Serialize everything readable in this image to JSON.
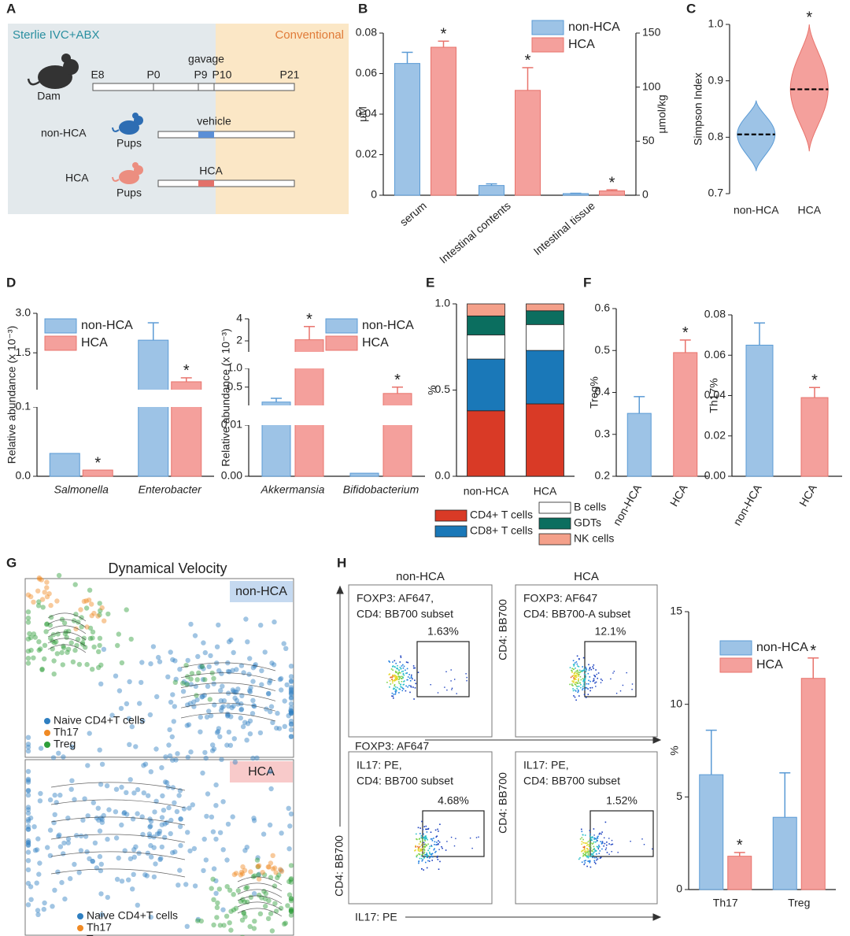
{
  "panel_labels": [
    "A",
    "B",
    "C",
    "D",
    "E",
    "F",
    "G",
    "H"
  ],
  "diagram": {
    "left_phase": "Sterlie IVC+ABX",
    "right_phase": "Conventional",
    "dam": "Dam",
    "timeline": [
      "E8",
      "P0",
      "P9",
      "P10",
      "P21"
    ],
    "gavage": "gavage",
    "groups": [
      {
        "name": "non-HCA",
        "pups": "Pups",
        "treatment": "vehicle"
      },
      {
        "name": "HCA",
        "pups": "Pups",
        "treatment": "HCA"
      }
    ]
  },
  "chart_data": [
    {
      "type": "bar",
      "ylabel": "µM",
      "y2label": "µmol/kg",
      "categories": [
        "serum",
        "Intestinal contents",
        "Intestinal tissue"
      ],
      "category_axes": [
        "y",
        "y2",
        "y2"
      ],
      "ylim": [
        0,
        0.08
      ],
      "yticks": [
        0,
        0.02,
        0.04,
        0.06,
        0.08
      ],
      "y2lim": [
        0,
        150
      ],
      "y2ticks": [
        0,
        50,
        100,
        150
      ],
      "legend": "upper right",
      "series": [
        {
          "name": "non-HCA",
          "color": "#9dc3e6",
          "edgecolor": "#5b9bd5",
          "values": [
            0.065,
            9,
            1.5
          ],
          "errors": [
            0.0055,
            1.5,
            0.3
          ]
        },
        {
          "name": "HCA",
          "color": "#f4a09c",
          "edgecolor": "#e8736c",
          "values": [
            0.073,
            97,
            4
          ],
          "errors": [
            0.003,
            21,
            1
          ],
          "sig": [
            "*",
            "*",
            "*"
          ]
        }
      ]
    },
    {
      "type": "violin",
      "ylabel": "Simpson Index",
      "categories": [
        "non-HCA",
        "HCA"
      ],
      "ylim": [
        0.7,
        1
      ],
      "yticks": [
        0.7,
        0.8,
        0.9,
        {
          "value": 1,
          "label": "1.0"
        }
      ],
      "medians": [
        0.805,
        0.885
      ],
      "mins": [
        0.74,
        0.775
      ],
      "maxs": [
        0.865,
        1.0
      ],
      "colors": [
        "#9dc3e6",
        "#f4a09c"
      ],
      "edgecolors": [
        "#5b9bd5",
        "#e8736c"
      ],
      "sig": [
        null,
        "*"
      ]
    },
    {
      "type": "bar",
      "ylabel": "Relative abundance (x 10⁻³)",
      "categories": [
        "Salmonella",
        "Enterobacter"
      ],
      "category_style": "italic",
      "legend": "upper left",
      "y_segments": [
        {
          "ylim": [
            0,
            0.1
          ],
          "yticks": [
            {
              "value": 0,
              "label": "0.0"
            },
            0.1
          ]
        },
        {
          "ylim": [
            0.1,
            3
          ],
          "yticks": [
            1.5,
            {
              "value": 3,
              "label": "3.0"
            }
          ]
        }
      ],
      "series": [
        {
          "name": "non-HCA",
          "color": "#9dc3e6",
          "edgecolor": "#5b9bd5",
          "values": [
            0.033,
            1.98
          ],
          "errors": [
            null,
            0.66
          ]
        },
        {
          "name": "HCA",
          "color": "#f4a09c",
          "edgecolor": "#e8736c",
          "values": [
            0.009,
            0.4
          ],
          "errors": [
            null,
            0.15
          ],
          "sig": [
            "*",
            "*"
          ]
        }
      ]
    },
    {
      "type": "bar",
      "ylabel": "Relative abundance (x 10⁻³)",
      "categories": [
        "Akkermansia",
        "Bifidobacterium"
      ],
      "category_style": "italic",
      "legend": "upper right",
      "y_segments": [
        {
          "ylim": [
            0,
            0.01
          ],
          "yticks": [
            {
              "value": 0,
              "label": "0.00"
            },
            0.01
          ]
        },
        {
          "ylim": [
            0.01,
            1
          ],
          "yticks": [
            0.5,
            {
              "value": 1,
              "label": "1.0"
            }
          ]
        },
        {
          "ylim": [
            1,
            4
          ],
          "yticks": [
            2,
            4
          ]
        }
      ],
      "series": [
        {
          "name": "non-HCA",
          "color": "#9dc3e6",
          "edgecolor": "#5b9bd5",
          "values": [
            0.1,
            0.0006
          ],
          "errors": [
            0.1,
            null
          ]
        },
        {
          "name": "HCA",
          "color": "#f4a09c",
          "edgecolor": "#e8736c",
          "values": [
            2.1,
            0.33
          ],
          "errors": [
            1.2,
            0.17
          ],
          "sig": [
            "*",
            "*"
          ]
        }
      ]
    },
    {
      "type": "stacked_bar",
      "ylabel": "%",
      "categories": [
        "non-HCA",
        "HCA"
      ],
      "ylim": [
        0,
        1
      ],
      "yticks": [
        {
          "value": 0,
          "label": "0.0"
        },
        0.5,
        {
          "value": 1,
          "label": "1.0"
        }
      ],
      "series": [
        {
          "name": "CD4+ T cells",
          "color": "#d93a26",
          "values": [
            0.38,
            0.42
          ]
        },
        {
          "name": "CD8+ T cells",
          "color": "#1a78b8",
          "values": [
            0.3,
            0.31
          ]
        },
        {
          "name": "B cells",
          "color": "#ffffff",
          "values": [
            0.14,
            0.15
          ]
        },
        {
          "name": "GDTs",
          "color": "#0b6e5f",
          "values": [
            0.11,
            0.08
          ]
        },
        {
          "name": "NK cells",
          "color": "#f4a08a",
          "values": [
            0.07,
            0.04
          ]
        }
      ]
    },
    {
      "type": "bar",
      "ylabel": "Treg%",
      "categories": [
        "non-HCA",
        "HCA"
      ],
      "ylim": [
        0.2,
        0.6
      ],
      "yticks": [
        0.2,
        0.3,
        0.4,
        0.5,
        0.6
      ],
      "values": [
        0.35,
        0.495
      ],
      "errors": [
        0.04,
        0.03
      ],
      "colors": [
        "#9dc3e6",
        "#f4a09c"
      ],
      "edgecolors": [
        "#5b9bd5",
        "#e8736c"
      ],
      "sig": [
        null,
        "*"
      ]
    },
    {
      "type": "bar",
      "ylabel": "Th17%",
      "categories": [
        "non-HCA",
        "HCA"
      ],
      "ylim": [
        0,
        0.08
      ],
      "yticks": [
        {
          "value": 0,
          "label": "0.00"
        },
        0.02,
        0.04,
        0.06,
        0.08
      ],
      "values": [
        0.065,
        0.039
      ],
      "errors": [
        0.011,
        0.005
      ],
      "colors": [
        "#9dc3e6",
        "#f4a09c"
      ],
      "edgecolors": [
        "#5b9bd5",
        "#e8736c"
      ],
      "sig": [
        null,
        "*"
      ]
    },
    {
      "type": "bar",
      "ylabel": "%",
      "categories": [
        "Th17",
        "Treg"
      ],
      "ylim": [
        0,
        15
      ],
      "yticks": [
        0,
        5,
        10,
        15
      ],
      "legend": "upper right",
      "series": [
        {
          "name": "non-HCA",
          "color": "#9dc3e6",
          "edgecolor": "#5b9bd5",
          "values": [
            6.2,
            3.9
          ],
          "errors": [
            2.4,
            2.4
          ]
        },
        {
          "name": "HCA",
          "color": "#f4a09c",
          "edgecolor": "#e8736c",
          "values": [
            1.8,
            11.4
          ],
          "errors": [
            0.2,
            1.1
          ],
          "sig": [
            "*",
            "*"
          ]
        }
      ]
    }
  ],
  "umap": {
    "title": "Dynamical Velocity",
    "panels": [
      "non-HCA",
      "HCA"
    ],
    "legend": [
      {
        "label": "Naive CD4+T cells",
        "color": "#2f7fc1"
      },
      {
        "label": "Th17",
        "color": "#f08a24"
      },
      {
        "label": "Treg",
        "color": "#2e9e3a"
      }
    ]
  },
  "flow": {
    "columns": [
      "non-HCA",
      "HCA"
    ],
    "plots": [
      {
        "title": [
          "FOXP3: AF647,",
          "CD4: BB700 subset"
        ],
        "percent": "1.63%"
      },
      {
        "title": [
          "FOXP3: AF647",
          "CD4: BB700-A subset"
        ],
        "percent": "12.1%"
      },
      {
        "title": [
          "IL17: PE,",
          "CD4: BB700 subset"
        ],
        "percent": "4.68%"
      },
      {
        "title": [
          "IL17: PE,",
          "CD4: BB700 subset"
        ],
        "percent": "1.52%"
      }
    ],
    "axis_labels": {
      "foxp3": "FOXP3: AF647",
      "cd4_top_right": "CD4: BB700",
      "cd4_bottom_left": "CD4: BB700",
      "cd4_bottom_right": "CD4: BB700",
      "il17": "IL17: PE"
    }
  }
}
